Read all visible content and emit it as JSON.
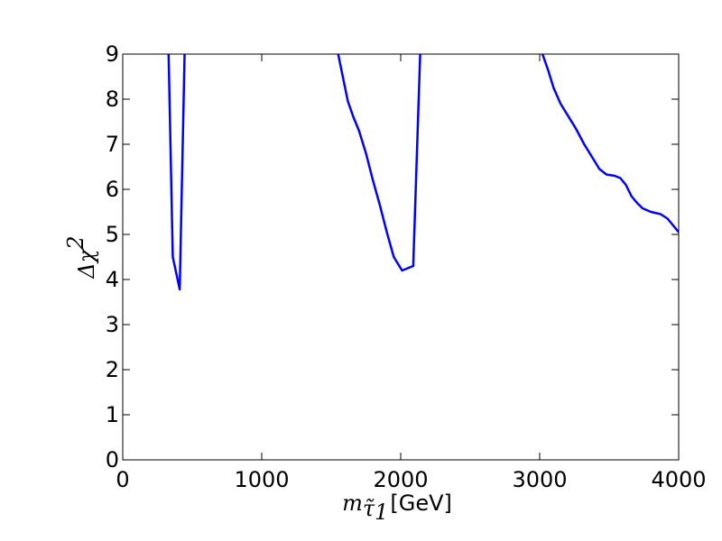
{
  "chart_data": {
    "type": "line",
    "xlabel": {
      "symbol": "m",
      "subscript": "τ̃",
      "subsubscript": "1",
      "unit": "[GeV]"
    },
    "ylabel": {
      "prefix": "Δχ",
      "superscript": "2"
    },
    "xlim": [
      0,
      4000
    ],
    "ylim": [
      0,
      9
    ],
    "xticks": [
      "0",
      "1000",
      "2000",
      "3000",
      "4000"
    ],
    "yticks": [
      "0",
      "1",
      "2",
      "3",
      "4",
      "5",
      "6",
      "7",
      "8",
      "9"
    ],
    "grid": false,
    "line_color": "#0000ff",
    "series": [
      {
        "x": [
          330,
          360,
          410,
          445
        ],
        "y": [
          9,
          4.5,
          3.78,
          9
        ]
      },
      {
        "x": [
          1550,
          1580,
          1620,
          1660,
          1700,
          1750,
          1800,
          1850,
          1900,
          1950,
          2010,
          2090,
          2140
        ],
        "y": [
          9,
          8.55,
          7.95,
          7.6,
          7.3,
          6.8,
          6.2,
          5.65,
          5.05,
          4.5,
          4.2,
          4.3,
          9
        ]
      },
      {
        "x": [
          3020,
          3060,
          3100,
          3150,
          3200,
          3260,
          3320,
          3380,
          3430,
          3480,
          3540,
          3580,
          3620,
          3660,
          3700,
          3740,
          3800,
          3870,
          3920,
          3960,
          4000
        ],
        "y": [
          9,
          8.65,
          8.25,
          7.9,
          7.65,
          7.35,
          7.0,
          6.7,
          6.45,
          6.33,
          6.3,
          6.25,
          6.1,
          5.85,
          5.7,
          5.58,
          5.5,
          5.45,
          5.35,
          5.2,
          5.05
        ]
      }
    ]
  }
}
